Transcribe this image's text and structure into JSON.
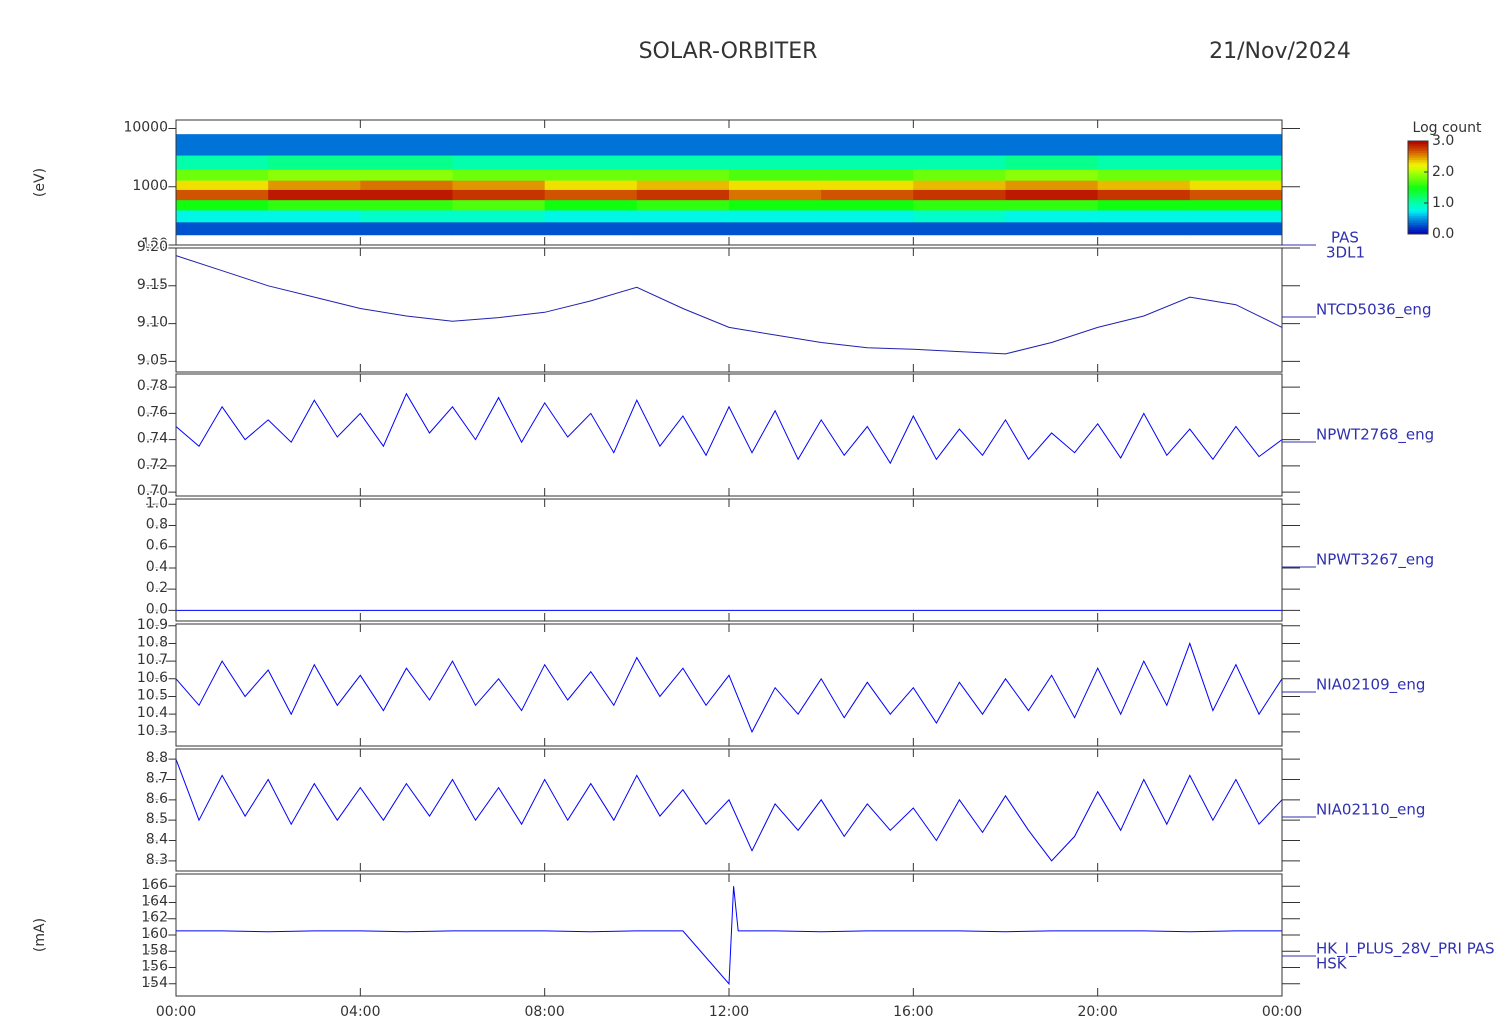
{
  "title": "SOLAR-ORBITER",
  "date": "21/Nov/2024",
  "label_color": "#3030b0",
  "xlim": [
    0,
    24
  ],
  "xticks": [
    {
      "value": 0,
      "label": "00:00"
    },
    {
      "value": 4,
      "label": "04:00"
    },
    {
      "value": 8,
      "label": "08:00"
    },
    {
      "value": 12,
      "label": "12:00"
    },
    {
      "value": 16,
      "label": "16:00"
    },
    {
      "value": 20,
      "label": "20:00"
    },
    {
      "value": 24,
      "label": "00:00"
    }
  ],
  "chart_data": [
    {
      "type": "heatmap",
      "name": "PAS",
      "subtitle": "3DL1",
      "ylabel": "(eV)",
      "ylog": true,
      "ylim": [
        100,
        14000
      ],
      "yticks": [
        100,
        1000,
        10000
      ],
      "xbins": [
        0,
        2,
        4,
        6,
        8,
        10,
        12,
        14,
        16,
        18,
        20,
        22,
        24
      ],
      "ybins": [
        150,
        250,
        400,
        600,
        900,
        1300,
        2000,
        3500,
        8000
      ],
      "z": [
        [
          0.3,
          0.8,
          1.5,
          2.7,
          2.3,
          1.8,
          1.0,
          0.4
        ],
        [
          0.3,
          0.8,
          1.6,
          2.9,
          2.5,
          1.9,
          1.1,
          0.4
        ],
        [
          0.3,
          0.9,
          1.6,
          2.9,
          2.6,
          1.9,
          1.1,
          0.4
        ],
        [
          0.3,
          0.9,
          1.7,
          2.8,
          2.5,
          1.8,
          1.0,
          0.4
        ],
        [
          0.3,
          0.8,
          1.5,
          2.7,
          2.3,
          1.8,
          1.0,
          0.4
        ],
        [
          0.3,
          0.8,
          1.6,
          2.8,
          2.4,
          1.8,
          1.0,
          0.4
        ],
        [
          0.3,
          0.8,
          1.5,
          2.6,
          2.3,
          1.7,
          1.0,
          0.4
        ],
        [
          0.3,
          0.8,
          1.5,
          2.7,
          2.3,
          1.7,
          1.0,
          0.4
        ],
        [
          0.3,
          0.9,
          1.6,
          2.8,
          2.4,
          1.8,
          1.0,
          0.4
        ],
        [
          0.3,
          0.8,
          1.6,
          2.9,
          2.5,
          1.9,
          1.1,
          0.4
        ],
        [
          0.3,
          0.8,
          1.5,
          2.8,
          2.4,
          1.8,
          1.0,
          0.4
        ],
        [
          0.3,
          0.8,
          1.5,
          2.7,
          2.3,
          1.8,
          1.0,
          0.4
        ]
      ],
      "colorbar_label": "Log count",
      "clim": [
        0,
        3
      ],
      "cticks": [
        {
          "value": 0,
          "label": "0.0"
        },
        {
          "value": 1,
          "label": "1.0"
        },
        {
          "value": 2,
          "label": "2.0"
        },
        {
          "value": 3,
          "label": "3.0"
        }
      ]
    },
    {
      "type": "line",
      "ylim": [
        9.036,
        9.2
      ],
      "yticks": [
        {
          "value": 9.2,
          "label": "9.20"
        },
        9.15,
        {
          "value": 9.1,
          "label": "9.10"
        },
        9.05
      ],
      "x": [
        0,
        1,
        2,
        3,
        4,
        5,
        6,
        7,
        8,
        9,
        10,
        11,
        12,
        13,
        14,
        15,
        16,
        17,
        18,
        19,
        20,
        21,
        22,
        23,
        24
      ],
      "series": [
        {
          "name": "NTCD5036_eng",
          "color": "#2020b0",
          "values": [
            9.19,
            9.17,
            9.15,
            9.135,
            9.12,
            9.11,
            9.103,
            9.108,
            9.115,
            9.13,
            9.148,
            9.12,
            9.095,
            9.085,
            9.075,
            9.068,
            9.066,
            9.063,
            9.06,
            9.075,
            9.095,
            9.11,
            9.135,
            9.125,
            9.095
          ]
        }
      ]
    },
    {
      "type": "line",
      "ylim": [
        0.697,
        0.79
      ],
      "yticks": [
        0.78,
        0.76,
        0.74,
        0.72,
        {
          "value": 0.7,
          "label": "0.70"
        }
      ],
      "x": [
        0,
        0.5,
        1,
        1.5,
        2,
        2.5,
        3,
        3.5,
        4,
        4.5,
        5,
        5.5,
        6,
        6.5,
        7,
        7.5,
        8,
        8.5,
        9,
        9.5,
        10,
        10.5,
        11,
        11.5,
        12,
        12.5,
        13,
        13.5,
        14,
        14.5,
        15,
        15.5,
        16,
        16.5,
        17,
        17.5,
        18,
        18.5,
        19,
        19.5,
        20,
        20.5,
        21,
        21.5,
        22,
        22.5,
        23,
        23.5,
        24
      ],
      "series": [
        {
          "name": "NPWT2768_eng",
          "color": "#0000ff",
          "values": [
            0.75,
            0.735,
            0.765,
            0.74,
            0.755,
            0.738,
            0.77,
            0.742,
            0.76,
            0.735,
            0.775,
            0.745,
            0.765,
            0.74,
            0.772,
            0.738,
            0.768,
            0.742,
            0.76,
            0.73,
            0.77,
            0.735,
            0.758,
            0.728,
            0.765,
            0.73,
            0.762,
            0.725,
            0.755,
            0.728,
            0.75,
            0.722,
            0.758,
            0.725,
            0.748,
            0.728,
            0.755,
            0.725,
            0.745,
            0.73,
            0.752,
            0.726,
            0.76,
            0.728,
            0.748,
            0.725,
            0.75,
            0.727,
            0.74
          ]
        }
      ]
    },
    {
      "type": "line",
      "ylim": [
        -0.1,
        1.05
      ],
      "yticks": [
        {
          "value": 1,
          "label": "1.0"
        },
        0.8,
        0.6,
        0.4,
        0.2,
        {
          "value": 0,
          "label": "0.0"
        }
      ],
      "x": [
        0,
        1,
        2,
        3,
        4,
        5,
        6,
        7,
        8,
        9,
        10,
        11,
        12,
        13,
        14,
        15,
        16,
        17,
        18,
        19,
        20,
        21,
        22,
        23,
        24
      ],
      "series": [
        {
          "name": "NPWT3267_eng",
          "color": "#0000ff",
          "values": [
            0,
            0,
            0,
            0,
            0,
            0,
            0,
            0,
            0,
            0,
            0,
            0,
            0,
            0,
            0,
            0,
            0,
            0,
            0,
            0,
            0,
            0,
            0,
            0,
            0
          ]
        }
      ]
    },
    {
      "type": "line",
      "ylim": [
        10.22,
        10.91
      ],
      "yticks": [
        10.9,
        10.8,
        10.7,
        10.6,
        10.5,
        10.4,
        10.3
      ],
      "x": [
        0,
        0.5,
        1,
        1.5,
        2,
        2.5,
        3,
        3.5,
        4,
        4.5,
        5,
        5.5,
        6,
        6.5,
        7,
        7.5,
        8,
        8.5,
        9,
        9.5,
        10,
        10.5,
        11,
        11.5,
        12,
        12.5,
        13,
        13.5,
        14,
        14.5,
        15,
        15.5,
        16,
        16.5,
        17,
        17.5,
        18,
        18.5,
        19,
        19.5,
        20,
        20.5,
        21,
        21.5,
        22,
        22.5,
        23,
        23.5,
        24
      ],
      "series": [
        {
          "name": "NIA02109_eng",
          "color": "#0000ff",
          "values": [
            10.6,
            10.45,
            10.7,
            10.5,
            10.65,
            10.4,
            10.68,
            10.45,
            10.62,
            10.42,
            10.66,
            10.48,
            10.7,
            10.45,
            10.6,
            10.42,
            10.68,
            10.48,
            10.64,
            10.45,
            10.72,
            10.5,
            10.66,
            10.45,
            10.62,
            10.3,
            10.55,
            10.4,
            10.6,
            10.38,
            10.58,
            10.4,
            10.55,
            10.35,
            10.58,
            10.4,
            10.6,
            10.42,
            10.62,
            10.38,
            10.66,
            10.4,
            10.7,
            10.45,
            10.8,
            10.42,
            10.68,
            10.4,
            10.6
          ]
        }
      ]
    },
    {
      "type": "line",
      "ylim": [
        8.25,
        8.85
      ],
      "yticks": [
        8.8,
        8.7,
        8.6,
        8.5,
        8.4,
        8.3
      ],
      "x": [
        0,
        0.5,
        1,
        1.5,
        2,
        2.5,
        3,
        3.5,
        4,
        4.5,
        5,
        5.5,
        6,
        6.5,
        7,
        7.5,
        8,
        8.5,
        9,
        9.5,
        10,
        10.5,
        11,
        11.5,
        12,
        12.5,
        13,
        13.5,
        14,
        14.5,
        15,
        15.5,
        16,
        16.5,
        17,
        17.5,
        18,
        18.5,
        19,
        19.5,
        20,
        20.5,
        21,
        21.5,
        22,
        22.5,
        23,
        23.5,
        24
      ],
      "series": [
        {
          "name": "NIA02110_eng",
          "color": "#0000ff",
          "values": [
            8.8,
            8.5,
            8.72,
            8.52,
            8.7,
            8.48,
            8.68,
            8.5,
            8.66,
            8.5,
            8.68,
            8.52,
            8.7,
            8.5,
            8.66,
            8.48,
            8.7,
            8.5,
            8.68,
            8.5,
            8.72,
            8.52,
            8.65,
            8.48,
            8.6,
            8.35,
            8.58,
            8.45,
            8.6,
            8.42,
            8.58,
            8.45,
            8.56,
            8.4,
            8.6,
            8.44,
            8.62,
            8.45,
            8.3,
            8.42,
            8.64,
            8.45,
            8.7,
            8.48,
            8.72,
            8.5,
            8.7,
            8.48,
            8.6
          ]
        }
      ]
    },
    {
      "type": "line",
      "subtitle": "HSK",
      "ylabel": "(mA)",
      "ylim": [
        152.5,
        167.5
      ],
      "yticks": [
        166,
        164,
        162,
        160,
        158,
        156,
        154
      ],
      "x": [
        0,
        1,
        2,
        3,
        4,
        5,
        6,
        7,
        8,
        9,
        10,
        11,
        12,
        12.1,
        12.2,
        13,
        14,
        15,
        16,
        17,
        18,
        19,
        20,
        21,
        22,
        23,
        24
      ],
      "series": [
        {
          "name": "HK_I_PLUS_28V_PRI PAS",
          "color": "#0000ff",
          "values": [
            160.5,
            160.5,
            160.4,
            160.5,
            160.5,
            160.4,
            160.5,
            160.5,
            160.5,
            160.4,
            160.5,
            160.5,
            154,
            166,
            160.5,
            160.5,
            160.4,
            160.5,
            160.5,
            160.5,
            160.4,
            160.5,
            160.5,
            160.5,
            160.4,
            160.5,
            160.5
          ]
        }
      ]
    }
  ]
}
